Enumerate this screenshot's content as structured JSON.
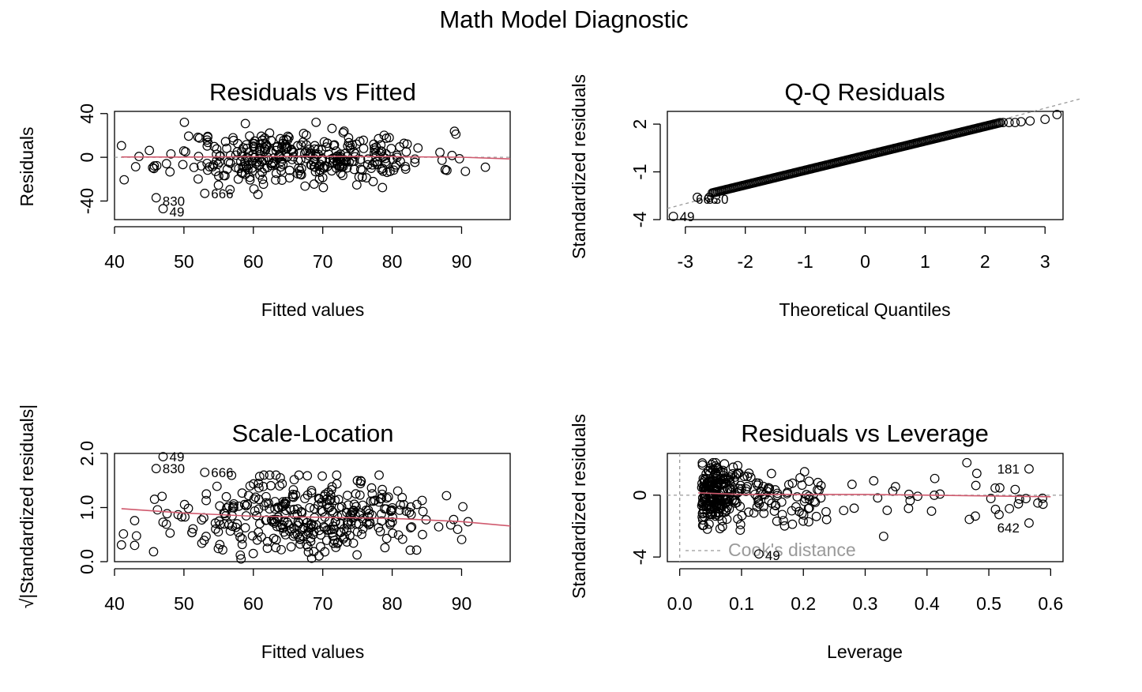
{
  "title": "Math Model Diagnostic",
  "chart_data": [
    {
      "type": "scatter",
      "name_key": "residuals-vs-fitted",
      "title": "Residuals vs Fitted",
      "xlabel": "Fitted values",
      "ylabel": "Residuals",
      "xlim": [
        40,
        97
      ],
      "ylim": [
        -57,
        42
      ],
      "xticks": [
        40,
        50,
        60,
        70,
        80,
        90
      ],
      "yticks": [
        -40,
        0,
        40
      ],
      "reference_line": {
        "type": "horizontal",
        "value": 0,
        "style": "dotted",
        "color": "#9a9a9a"
      },
      "smooth": {
        "color": "#d05a6e",
        "x": [
          41,
          50,
          60,
          70,
          80,
          90,
          97
        ],
        "y": [
          0.3,
          0.2,
          0.6,
          0.9,
          0.6,
          0.1,
          -1.5
        ]
      },
      "labeled_points": [
        {
          "label": "830",
          "x": 46,
          "y": -37
        },
        {
          "label": "49",
          "x": 47,
          "y": -47
        },
        {
          "label": "666",
          "x": 53,
          "y": -33
        }
      ],
      "sample_count": 360,
      "seed": 11
    },
    {
      "type": "scatter",
      "name_key": "qq-residuals",
      "title": "Q-Q Residuals",
      "xlabel": "Theoretical Quantiles",
      "ylabel": "Standardized residuals",
      "xlim": [
        -3.3,
        3.3
      ],
      "ylim": [
        -4,
        2.8
      ],
      "xticks": [
        -3,
        -2,
        -1,
        0,
        1,
        2,
        3
      ],
      "yticks": [
        -4,
        -1,
        2
      ],
      "reference_line": {
        "type": "diagonal",
        "intercept": 0,
        "slope": 1,
        "style": "dashed",
        "color": "#9a9a9a"
      },
      "labeled_points": [
        {
          "label": "49",
          "x": -3.2,
          "y": -3.8
        },
        {
          "label": "666",
          "x": -2.8,
          "y": -2.6
        },
        {
          "label": "830",
          "x": -2.6,
          "y": -2.6
        }
      ],
      "upper_tail": [
        2.3,
        2.4,
        2.5,
        2.6,
        2.75,
        3.0,
        3.2
      ],
      "upper_tail_values": [
        2.1,
        2.1,
        2.1,
        2.15,
        2.2,
        2.3,
        2.6
      ],
      "sample_count": 220
    },
    {
      "type": "scatter",
      "name_key": "scale-location",
      "title": "Scale-Location",
      "xlabel": "Fitted values",
      "ylabel": "√|Standardized residuals|",
      "xlim": [
        40,
        97
      ],
      "ylim": [
        0,
        2.0
      ],
      "xticks": [
        40,
        50,
        60,
        70,
        80,
        90
      ],
      "yticks": [
        0.0,
        1.0,
        2.0
      ],
      "ytick_labels": [
        "0.0",
        "1.0",
        "2.0"
      ],
      "smooth": {
        "color": "#d05a6e",
        "x": [
          41,
          50,
          60,
          70,
          80,
          90,
          97
        ],
        "y": [
          0.98,
          0.9,
          0.84,
          0.82,
          0.8,
          0.74,
          0.66
        ]
      },
      "labeled_points": [
        {
          "label": "49",
          "x": 47,
          "y": 1.94
        },
        {
          "label": "830",
          "x": 46,
          "y": 1.72
        },
        {
          "label": "666",
          "x": 53,
          "y": 1.65
        }
      ],
      "sample_count": 360,
      "seed": 23
    },
    {
      "type": "scatter",
      "name_key": "residuals-vs-leverage",
      "title": "Residuals vs Leverage",
      "xlabel": "Leverage",
      "ylabel": "Standardized residuals",
      "xlim": [
        -0.02,
        0.62
      ],
      "ylim": [
        -4.3,
        2.7
      ],
      "xticks": [
        0.0,
        0.1,
        0.2,
        0.3,
        0.4,
        0.5,
        0.6
      ],
      "xtick_labels": [
        "0.0",
        "0.1",
        "0.2",
        "0.3",
        "0.4",
        "0.5",
        "0.6"
      ],
      "yticks": [
        -4,
        0
      ],
      "reference_line": {
        "type": "horizontal",
        "value": 0,
        "style": "dotted",
        "color": "#9a9a9a"
      },
      "vertical_reference": {
        "value": 0,
        "style": "dotted",
        "color": "#9a9a9a"
      },
      "smooth": {
        "color": "#d05a6e",
        "x": [
          0.03,
          0.1,
          0.2,
          0.3,
          0.4,
          0.5,
          0.6
        ],
        "y": [
          0.15,
          0.05,
          0.05,
          0.05,
          0.0,
          -0.05,
          -0.1
        ]
      },
      "legend": {
        "label": "Cook's distance",
        "placement": "bottom-left",
        "style": "dashed",
        "color": "#9a9a9a"
      },
      "labeled_points": [
        {
          "label": "181",
          "x": 0.565,
          "y": 1.7
        },
        {
          "label": "642",
          "x": 0.565,
          "y": -1.8
        },
        {
          "label": "49",
          "x": 0.128,
          "y": -3.8
        }
      ],
      "sample_count": 330,
      "seed": 37
    }
  ]
}
